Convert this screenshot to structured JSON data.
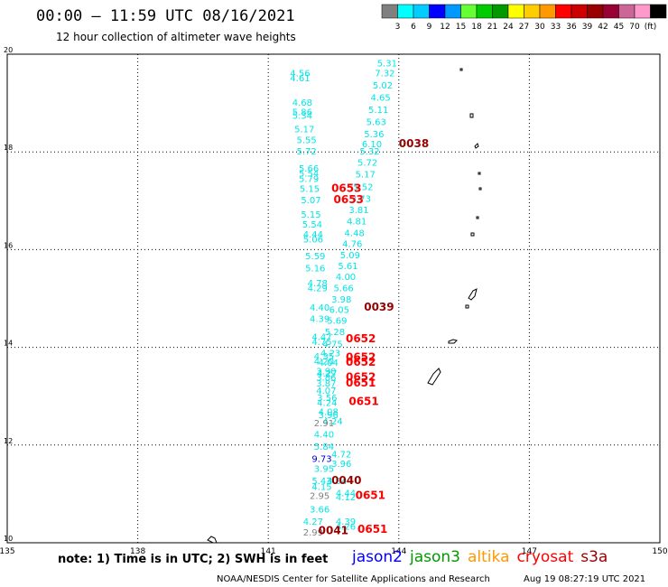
{
  "title": "00:00 – 11:59 UTC 08/16/2021",
  "subtitle": "12 hour collection of altimeter wave heights",
  "colorbar": {
    "colors": [
      "#808080",
      "#00ffff",
      "#00ccff",
      "#0000ff",
      "#0099ff",
      "#66ff33",
      "#00cc00",
      "#009900",
      "#ffff00",
      "#ffcc00",
      "#ff9900",
      "#ff0000",
      "#cc0000",
      "#990000",
      "#990033",
      "#cc6699",
      "#ff99cc",
      "#000000"
    ],
    "labels": [
      "3",
      "6",
      "9",
      "12",
      "15",
      "18",
      "21",
      "24",
      "27",
      "30",
      "33",
      "36",
      "39",
      "42",
      "45",
      "70",
      "(ft)"
    ]
  },
  "note": "note: 1) Time is in UTC; 2) SWH is in feet",
  "satellites": [
    {
      "name": "jason2",
      "color": "#0000ff"
    },
    {
      "name": "jason3",
      "color": "#009900"
    },
    {
      "name": "altika",
      "color": "#ff9900"
    },
    {
      "name": "cryosat",
      "color": "#ff0000"
    },
    {
      "name": "s3a",
      "color": "#990000"
    }
  ],
  "footer_left": "NOAA/NESDIS Center for Satellite Applications and Research",
  "footer_right": "Aug 19 08:27:19 UTC 2021",
  "chart_data": {
    "type": "scatter",
    "xlim": [
      135,
      150
    ],
    "ylim": [
      10,
      20
    ],
    "xticks": [
      "135",
      "138",
      "141",
      "144",
      "147",
      "150"
    ],
    "yticks": [
      "10",
      "12",
      "14",
      "16",
      "18",
      "20"
    ],
    "grid": true,
    "wave_heights": [
      {
        "lon": 141.5,
        "lat": 19.55,
        "text": "4.56",
        "c": "#00e5e5"
      },
      {
        "lon": 141.5,
        "lat": 19.45,
        "text": "4.61",
        "c": "#00e5e5"
      },
      {
        "lon": 141.55,
        "lat": 18.95,
        "text": "4.68",
        "c": "#00e5e5"
      },
      {
        "lon": 141.55,
        "lat": 18.75,
        "text": "5.86",
        "c": "#00e5e5"
      },
      {
        "lon": 141.55,
        "lat": 18.68,
        "text": "5.34",
        "c": "#00e5e5"
      },
      {
        "lon": 141.6,
        "lat": 18.4,
        "text": "5.17",
        "c": "#00e5e5"
      },
      {
        "lon": 141.65,
        "lat": 18.18,
        "text": "5.55",
        "c": "#00e5e5"
      },
      {
        "lon": 141.65,
        "lat": 17.95,
        "text": "5.72",
        "c": "#00e5e5"
      },
      {
        "lon": 141.7,
        "lat": 17.6,
        "text": "5.66",
        "c": "#00e5e5"
      },
      {
        "lon": 141.7,
        "lat": 17.5,
        "text": "5.54",
        "c": "#00e5e5"
      },
      {
        "lon": 141.7,
        "lat": 17.38,
        "text": "5.79",
        "c": "#00e5e5"
      },
      {
        "lon": 141.72,
        "lat": 17.18,
        "text": "5.15",
        "c": "#00e5e5"
      },
      {
        "lon": 141.75,
        "lat": 16.95,
        "text": "5.07",
        "c": "#00e5e5"
      },
      {
        "lon": 141.75,
        "lat": 16.65,
        "text": "5.15",
        "c": "#00e5e5"
      },
      {
        "lon": 141.78,
        "lat": 16.45,
        "text": "5.54",
        "c": "#00e5e5"
      },
      {
        "lon": 141.8,
        "lat": 16.25,
        "text": "4.44",
        "c": "#00e5e5"
      },
      {
        "lon": 141.8,
        "lat": 16.15,
        "text": "5.06",
        "c": "#00e5e5"
      },
      {
        "lon": 141.85,
        "lat": 15.8,
        "text": "5.59",
        "c": "#00e5e5"
      },
      {
        "lon": 141.85,
        "lat": 15.55,
        "text": "5.16",
        "c": "#00e5e5"
      },
      {
        "lon": 141.9,
        "lat": 15.25,
        "text": "4.78",
        "c": "#00e5e5"
      },
      {
        "lon": 141.9,
        "lat": 15.15,
        "text": "4.29",
        "c": "#00e5e5"
      },
      {
        "lon": 141.95,
        "lat": 14.75,
        "text": "4.40",
        "c": "#00e5e5"
      },
      {
        "lon": 141.95,
        "lat": 14.52,
        "text": "4.39",
        "c": "#00e5e5"
      },
      {
        "lon": 142.0,
        "lat": 14.15,
        "text": "4.47",
        "c": "#00e5e5"
      },
      {
        "lon": 142.0,
        "lat": 14.05,
        "text": "4.75",
        "c": "#00e5e5"
      },
      {
        "lon": 142.05,
        "lat": 13.75,
        "text": "4.35",
        "c": "#00e5e5"
      },
      {
        "lon": 142.05,
        "lat": 13.65,
        "text": "4.20",
        "c": "#00e5e5"
      },
      {
        "lon": 142.1,
        "lat": 13.45,
        "text": "3.90",
        "c": "#00e5e5"
      },
      {
        "lon": 142.1,
        "lat": 13.32,
        "text": "3.86",
        "c": "#00e5e5"
      },
      {
        "lon": 142.1,
        "lat": 13.2,
        "text": "3.87",
        "c": "#00e5e5"
      },
      {
        "lon": 142.1,
        "lat": 13.05,
        "text": "4.07",
        "c": "#00e5e5"
      },
      {
        "lon": 142.12,
        "lat": 12.9,
        "text": "3.56",
        "c": "#00e5e5"
      },
      {
        "lon": 142.12,
        "lat": 12.8,
        "text": "4.24",
        "c": "#00e5e5"
      },
      {
        "lon": 142.15,
        "lat": 12.62,
        "text": "4.08",
        "c": "#00e5e5"
      },
      {
        "lon": 142.15,
        "lat": 12.55,
        "text": "3.96",
        "c": "#00e5e5"
      },
      {
        "lon": 142.25,
        "lat": 12.42,
        "text": "4.24",
        "c": "#00e5e5"
      },
      {
        "lon": 142.05,
        "lat": 12.38,
        "text": "2.91",
        "c": "#808080"
      },
      {
        "lon": 142.05,
        "lat": 12.15,
        "text": "4.40",
        "c": "#00e5e5"
      },
      {
        "lon": 142.05,
        "lat": 11.9,
        "text": "5.84",
        "c": "#00e5e5"
      },
      {
        "lon": 142.45,
        "lat": 11.75,
        "text": "4.72",
        "c": "#00e5e5"
      },
      {
        "lon": 142.0,
        "lat": 11.65,
        "text": "9.73",
        "c": "#0000cc"
      },
      {
        "lon": 142.45,
        "lat": 11.55,
        "text": "3.96",
        "c": "#00e5e5"
      },
      {
        "lon": 142.05,
        "lat": 11.45,
        "text": "3.95",
        "c": "#00e5e5"
      },
      {
        "lon": 142.0,
        "lat": 11.2,
        "text": "5.43",
        "c": "#00e5e5"
      },
      {
        "lon": 142.0,
        "lat": 11.08,
        "text": "4.15",
        "c": "#00e5e5"
      },
      {
        "lon": 142.35,
        "lat": 11.2,
        "text": "4.04",
        "c": "#00e5e5"
      },
      {
        "lon": 141.95,
        "lat": 10.9,
        "text": "2.95",
        "c": "#808080"
      },
      {
        "lon": 142.55,
        "lat": 10.95,
        "text": "4.44",
        "c": "#00e5e5"
      },
      {
        "lon": 142.55,
        "lat": 10.87,
        "text": "4.12",
        "c": "#00e5e5"
      },
      {
        "lon": 141.95,
        "lat": 10.62,
        "text": "3.66",
        "c": "#00e5e5"
      },
      {
        "lon": 141.8,
        "lat": 10.37,
        "text": "4.27",
        "c": "#00e5e5"
      },
      {
        "lon": 142.55,
        "lat": 10.37,
        "text": "4.39",
        "c": "#00e5e5"
      },
      {
        "lon": 142.55,
        "lat": 10.27,
        "text": "4.26",
        "c": "#00e5e5"
      },
      {
        "lon": 141.8,
        "lat": 10.15,
        "text": "2.99",
        "c": "#808080"
      },
      {
        "lon": 143.5,
        "lat": 19.75,
        "text": "5.31",
        "c": "#00e5e5"
      },
      {
        "lon": 143.45,
        "lat": 19.55,
        "text": "7.32",
        "c": "#00e5e5"
      },
      {
        "lon": 143.4,
        "lat": 19.3,
        "text": "5.02",
        "c": "#00e5e5"
      },
      {
        "lon": 143.35,
        "lat": 19.05,
        "text": "4.65",
        "c": "#00e5e5"
      },
      {
        "lon": 143.3,
        "lat": 18.8,
        "text": "5.11",
        "c": "#00e5e5"
      },
      {
        "lon": 143.25,
        "lat": 18.55,
        "text": "5.63",
        "c": "#00e5e5"
      },
      {
        "lon": 143.2,
        "lat": 18.3,
        "text": "5.36",
        "c": "#00e5e5"
      },
      {
        "lon": 143.15,
        "lat": 18.1,
        "text": "6.10",
        "c": "#00e5e5"
      },
      {
        "lon": 143.1,
        "lat": 17.95,
        "text": "5.32",
        "c": "#00e5e5"
      },
      {
        "lon": 143.05,
        "lat": 17.72,
        "text": "5.72",
        "c": "#00e5e5"
      },
      {
        "lon": 143.0,
        "lat": 17.48,
        "text": "5.17",
        "c": "#00e5e5"
      },
      {
        "lon": 142.95,
        "lat": 17.22,
        "text": "5.52",
        "c": "#00e5e5"
      },
      {
        "lon": 142.9,
        "lat": 16.98,
        "text": "3.73",
        "c": "#00e5e5"
      },
      {
        "lon": 142.85,
        "lat": 16.75,
        "text": "3.81",
        "c": "#00e5e5"
      },
      {
        "lon": 142.8,
        "lat": 16.52,
        "text": "4.81",
        "c": "#00e5e5"
      },
      {
        "lon": 142.75,
        "lat": 16.28,
        "text": "4.48",
        "c": "#00e5e5"
      },
      {
        "lon": 142.7,
        "lat": 16.05,
        "text": "4.76",
        "c": "#00e5e5"
      },
      {
        "lon": 142.65,
        "lat": 15.82,
        "text": "5.09",
        "c": "#00e5e5"
      },
      {
        "lon": 142.6,
        "lat": 15.6,
        "text": "5.61",
        "c": "#00e5e5"
      },
      {
        "lon": 142.55,
        "lat": 15.38,
        "text": "4.00",
        "c": "#00e5e5"
      },
      {
        "lon": 142.5,
        "lat": 15.15,
        "text": "5.66",
        "c": "#00e5e5"
      },
      {
        "lon": 142.45,
        "lat": 14.92,
        "text": "3.98",
        "c": "#00e5e5"
      },
      {
        "lon": 142.4,
        "lat": 14.7,
        "text": "6.05",
        "c": "#00e5e5"
      },
      {
        "lon": 142.35,
        "lat": 14.48,
        "text": "5.69",
        "c": "#00e5e5"
      },
      {
        "lon": 142.3,
        "lat": 14.25,
        "text": "5.28",
        "c": "#00e5e5"
      },
      {
        "lon": 142.25,
        "lat": 14.0,
        "text": "4.75",
        "c": "#00e5e5"
      },
      {
        "lon": 142.2,
        "lat": 13.82,
        "text": "4.23",
        "c": "#00e5e5"
      },
      {
        "lon": 142.15,
        "lat": 13.62,
        "text": "4.04",
        "c": "#00e5e5"
      },
      {
        "lon": 142.12,
        "lat": 13.4,
        "text": "4.27",
        "c": "#00e5e5"
      }
    ],
    "passes": [
      {
        "lon": 144.0,
        "lat": 18.1,
        "text": "0038",
        "c": "#990000"
      },
      {
        "lon": 142.45,
        "lat": 17.18,
        "text": "0653",
        "c": "#ff0000"
      },
      {
        "lon": 142.5,
        "lat": 16.95,
        "text": "0653",
        "c": "#ff0000"
      },
      {
        "lon": 143.2,
        "lat": 14.75,
        "text": "0039",
        "c": "#990000"
      },
      {
        "lon": 142.78,
        "lat": 14.1,
        "text": "0652",
        "c": "#ff0000"
      },
      {
        "lon": 142.78,
        "lat": 13.72,
        "text": "0652",
        "c": "#ff0000"
      },
      {
        "lon": 142.78,
        "lat": 13.62,
        "text": "0652",
        "c": "#ff0000"
      },
      {
        "lon": 142.78,
        "lat": 13.32,
        "text": "0652",
        "c": "#ff0000"
      },
      {
        "lon": 142.78,
        "lat": 13.2,
        "text": "0651",
        "c": "#ff0000"
      },
      {
        "lon": 142.85,
        "lat": 12.82,
        "text": "0651",
        "c": "#ff0000"
      },
      {
        "lon": 142.45,
        "lat": 11.2,
        "text": "0040",
        "c": "#990000"
      },
      {
        "lon": 143.0,
        "lat": 10.9,
        "text": "0651",
        "c": "#ff0000"
      },
      {
        "lon": 142.15,
        "lat": 10.18,
        "text": "0041",
        "c": "#990000"
      },
      {
        "lon": 143.05,
        "lat": 10.2,
        "text": "0651",
        "c": "#ff0000"
      }
    ]
  }
}
